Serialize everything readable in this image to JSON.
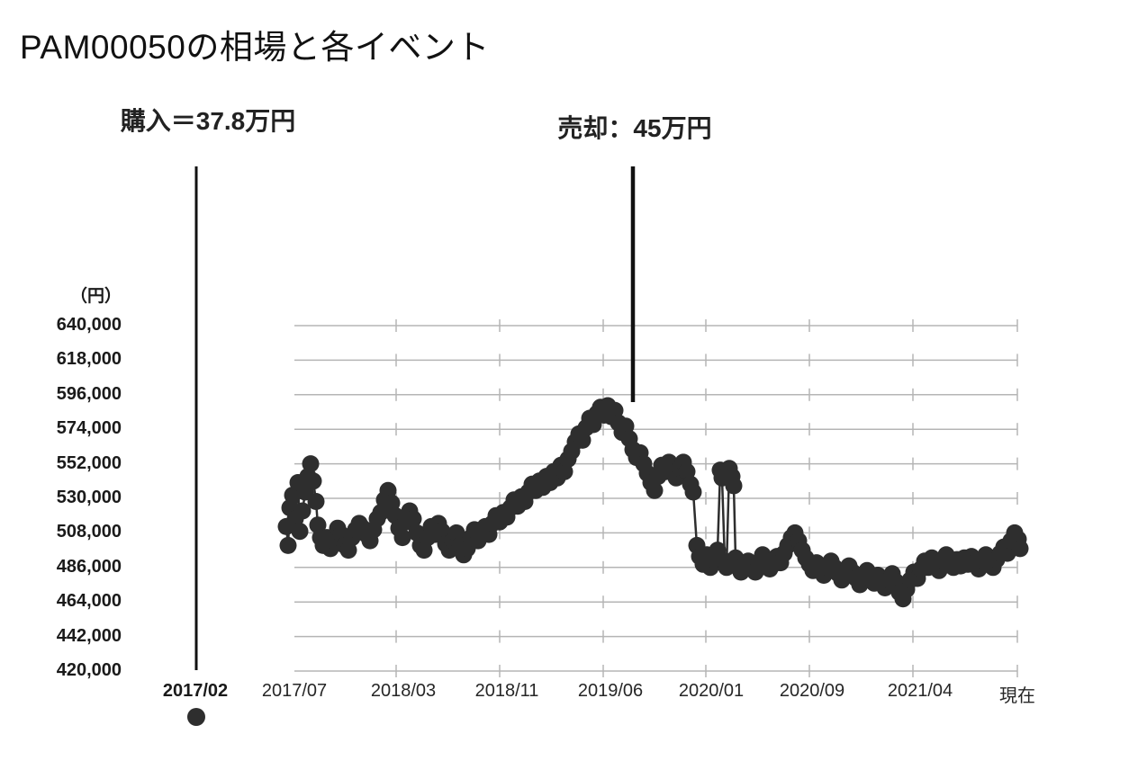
{
  "title": "PAM00050の相場と各イベント",
  "annotations": {
    "buy": {
      "label": "購入＝37.8万円",
      "price_yen": 378000,
      "x_label": "2017/02"
    },
    "sell": {
      "label": "売却：45万円",
      "price_yen": 450000
    }
  },
  "colors": {
    "marker": "#2e2e2e",
    "line": "#2e2e2e",
    "grid": "#b5b5b5",
    "event_line": "#111111",
    "text": "#1a1a1a"
  },
  "chart_data": {
    "type": "scatter",
    "title": "PAM00050の相場と各イベント",
    "y_unit_label": "（円）",
    "ylim": [
      420000,
      640000
    ],
    "y_tick_values": [
      640000,
      618000,
      596000,
      574000,
      552000,
      530000,
      508000,
      486000,
      464000,
      442000,
      420000
    ],
    "x_event_tick": "2017/02",
    "x_tick_labels": [
      "2017/07",
      "2018/03",
      "2018/11",
      "2019/06",
      "2020/01",
      "2020/09",
      "2021/04",
      "現在"
    ],
    "grid": true,
    "legend": "none",
    "events": [
      {
        "label": "購入＝37.8万円",
        "at": "2017/02",
        "price_yen": 378000
      },
      {
        "label": "売却：45万円",
        "at": "2019/07頃",
        "price_yen": 450000
      }
    ],
    "series": [
      {
        "name": "相場",
        "x_unit": "px",
        "y_unit": "JPY",
        "points": [
          [
            318,
            512000
          ],
          [
            320,
            500000
          ],
          [
            322,
            524000
          ],
          [
            325,
            532000
          ],
          [
            328,
            517000
          ],
          [
            331,
            540000
          ],
          [
            333,
            509000
          ],
          [
            336,
            522000
          ],
          [
            339,
            534000
          ],
          [
            342,
            544000
          ],
          [
            345,
            552000
          ],
          [
            348,
            541000
          ],
          [
            351,
            528000
          ],
          [
            353,
            513000
          ],
          [
            356,
            505000
          ],
          [
            359,
            500000
          ],
          [
            363,
            505000
          ],
          [
            367,
            498000
          ],
          [
            371,
            503000
          ],
          [
            375,
            511000
          ],
          [
            379,
            507000
          ],
          [
            383,
            500000
          ],
          [
            387,
            497000
          ],
          [
            391,
            505000
          ],
          [
            395,
            510000
          ],
          [
            399,
            514000
          ],
          [
            403,
            511000
          ],
          [
            407,
            507000
          ],
          [
            411,
            503000
          ],
          [
            415,
            510000
          ],
          [
            419,
            517000
          ],
          [
            423,
            521000
          ],
          [
            427,
            529000
          ],
          [
            431,
            535000
          ],
          [
            435,
            527000
          ],
          [
            439,
            519000
          ],
          [
            443,
            511000
          ],
          [
            447,
            505000
          ],
          [
            451,
            515000
          ],
          [
            455,
            522000
          ],
          [
            459,
            517000
          ],
          [
            463,
            508000
          ],
          [
            467,
            500000
          ],
          [
            471,
            497000
          ],
          [
            475,
            505000
          ],
          [
            479,
            512000
          ],
          [
            483,
            507000
          ],
          [
            487,
            514000
          ],
          [
            491,
            509000
          ],
          [
            495,
            501000
          ],
          [
            499,
            497000
          ],
          [
            503,
            503000
          ],
          [
            507,
            508000
          ],
          [
            511,
            500000
          ],
          [
            515,
            494000
          ],
          [
            519,
            498000
          ],
          [
            523,
            505000
          ],
          [
            527,
            510000
          ],
          [
            531,
            503000
          ],
          [
            535,
            508000
          ],
          [
            539,
            512000
          ],
          [
            543,
            507000
          ],
          [
            547,
            514000
          ],
          [
            551,
            519000
          ],
          [
            555,
            515000
          ],
          [
            559,
            521000
          ],
          [
            563,
            518000
          ],
          [
            567,
            524000
          ],
          [
            571,
            529000
          ],
          [
            575,
            525000
          ],
          [
            579,
            531000
          ],
          [
            583,
            528000
          ],
          [
            587,
            534000
          ],
          [
            591,
            539000
          ],
          [
            595,
            535000
          ],
          [
            599,
            541000
          ],
          [
            603,
            537000
          ],
          [
            607,
            544000
          ],
          [
            611,
            540000
          ],
          [
            615,
            547000
          ],
          [
            619,
            543000
          ],
          [
            623,
            551000
          ],
          [
            627,
            547000
          ],
          [
            631,
            555000
          ],
          [
            635,
            560000
          ],
          [
            639,
            566000
          ],
          [
            643,
            571000
          ],
          [
            647,
            567000
          ],
          [
            651,
            575000
          ],
          [
            655,
            581000
          ],
          [
            659,
            577000
          ],
          [
            663,
            584000
          ],
          [
            667,
            588000
          ],
          [
            671,
            583000
          ],
          [
            675,
            589000
          ],
          [
            679,
            582000
          ],
          [
            683,
            586000
          ],
          [
            687,
            578000
          ],
          [
            691,
            572000
          ],
          [
            695,
            576000
          ],
          [
            699,
            568000
          ],
          [
            703,
            561000
          ],
          [
            707,
            556000
          ],
          [
            711,
            559000
          ],
          [
            715,
            552000
          ],
          [
            719,
            546000
          ],
          [
            723,
            540000
          ],
          [
            727,
            535000
          ],
          [
            731,
            544000
          ],
          [
            735,
            551000
          ],
          [
            739,
            547000
          ],
          [
            743,
            553000
          ],
          [
            747,
            549000
          ],
          [
            751,
            543000
          ],
          [
            755,
            549000
          ],
          [
            759,
            553000
          ],
          [
            763,
            547000
          ],
          [
            767,
            539000
          ],
          [
            770,
            534000
          ],
          [
            774,
            500000
          ],
          [
            777,
            493000
          ],
          [
            781,
            488000
          ],
          [
            785,
            494000
          ],
          [
            789,
            486000
          ],
          [
            793,
            491000
          ],
          [
            797,
            497000
          ],
          [
            800,
            548000
          ],
          [
            802,
            543000
          ],
          [
            805,
            490000
          ],
          [
            807,
            486000
          ],
          [
            810,
            549000
          ],
          [
            813,
            544000
          ],
          [
            815,
            538000
          ],
          [
            817,
            492000
          ],
          [
            820,
            486000
          ],
          [
            823,
            483000
          ],
          [
            827,
            488000
          ],
          [
            831,
            490000
          ],
          [
            835,
            486000
          ],
          [
            839,
            483000
          ],
          [
            843,
            489000
          ],
          [
            847,
            494000
          ],
          [
            851,
            490000
          ],
          [
            855,
            485000
          ],
          [
            859,
            488000
          ],
          [
            863,
            493000
          ],
          [
            867,
            489000
          ],
          [
            871,
            495000
          ],
          [
            875,
            500000
          ],
          [
            879,
            505000
          ],
          [
            883,
            508000
          ],
          [
            887,
            503000
          ],
          [
            891,
            497000
          ],
          [
            895,
            492000
          ],
          [
            899,
            488000
          ],
          [
            903,
            484000
          ],
          [
            907,
            489000
          ],
          [
            911,
            485000
          ],
          [
            915,
            481000
          ],
          [
            919,
            486000
          ],
          [
            923,
            490000
          ],
          [
            927,
            486000
          ],
          [
            931,
            482000
          ],
          [
            935,
            478000
          ],
          [
            939,
            483000
          ],
          [
            943,
            487000
          ],
          [
            947,
            483000
          ],
          [
            951,
            479000
          ],
          [
            955,
            475000
          ],
          [
            959,
            480000
          ],
          [
            963,
            484000
          ],
          [
            967,
            480000
          ],
          [
            971,
            476000
          ],
          [
            975,
            481000
          ],
          [
            979,
            477000
          ],
          [
            983,
            473000
          ],
          [
            987,
            478000
          ],
          [
            991,
            482000
          ],
          [
            995,
            477000
          ],
          [
            999,
            470000
          ],
          [
            1003,
            466000
          ],
          [
            1007,
            472000
          ],
          [
            1011,
            478000
          ],
          [
            1015,
            483000
          ],
          [
            1019,
            479000
          ],
          [
            1023,
            485000
          ],
          [
            1027,
            490000
          ],
          [
            1031,
            486000
          ],
          [
            1035,
            492000
          ],
          [
            1039,
            488000
          ],
          [
            1043,
            484000
          ],
          [
            1047,
            490000
          ],
          [
            1051,
            494000
          ],
          [
            1055,
            490000
          ],
          [
            1059,
            486000
          ],
          [
            1063,
            491000
          ],
          [
            1067,
            487000
          ],
          [
            1071,
            492000
          ],
          [
            1075,
            488000
          ],
          [
            1079,
            493000
          ],
          [
            1083,
            489000
          ],
          [
            1087,
            485000
          ],
          [
            1091,
            490000
          ],
          [
            1095,
            494000
          ],
          [
            1099,
            490000
          ],
          [
            1103,
            486000
          ],
          [
            1107,
            491000
          ],
          [
            1111,
            495000
          ],
          [
            1115,
            499000
          ],
          [
            1119,
            495000
          ],
          [
            1123,
            503000
          ],
          [
            1127,
            508000
          ],
          [
            1131,
            504000
          ],
          [
            1133,
            498000
          ]
        ]
      }
    ]
  }
}
